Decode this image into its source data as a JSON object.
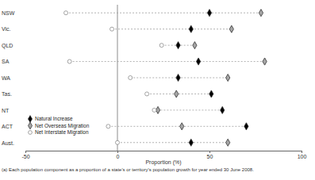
{
  "chart_data": {
    "type": "dot",
    "categories": [
      "NSW",
      "Vic.",
      "QLD",
      "SA",
      "WA",
      "Tas.",
      "NT",
      "ACT",
      "Aust."
    ],
    "series": [
      {
        "name": "Natural Increase",
        "color": "#000000",
        "marker": "diamond",
        "values": [
          50,
          40,
          33,
          44,
          33,
          51,
          57,
          70,
          40
        ]
      },
      {
        "name": "Net Overseas Migration",
        "color": "#a6a6a6",
        "marker": "diamond",
        "values": [
          78,
          62,
          42,
          80,
          60,
          32,
          22,
          35,
          60
        ]
      },
      {
        "name": "Net Interstate Migration",
        "color": "#ffffff",
        "marker": "circle",
        "values": [
          -28,
          -3,
          24,
          -26,
          7,
          16,
          20,
          -5,
          0
        ]
      }
    ],
    "x_label": "Proportion (%)",
    "footnote": "(a) Each population component as a proportion of a state's or territory's population growth for year ended 30 June 2008.",
    "xlim": [
      -50,
      100
    ],
    "xticks": [
      -50,
      0,
      50,
      100
    ],
    "grid": false,
    "legend": "lower left"
  }
}
